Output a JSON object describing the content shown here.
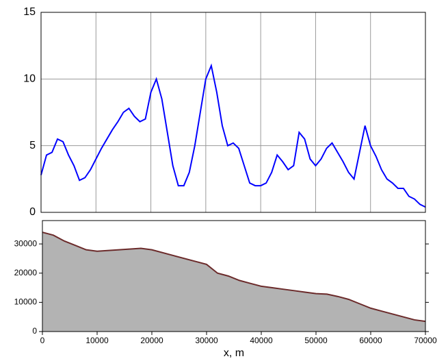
{
  "chart_data": [
    {
      "type": "line",
      "x": [
        0,
        1000,
        2000,
        3000,
        4000,
        5000,
        6000,
        7000,
        8000,
        9000,
        10000,
        11000,
        12000,
        13000,
        14000,
        15000,
        16000,
        17000,
        18000,
        19000,
        20000,
        21000,
        22000,
        23000,
        24000,
        25000,
        26000,
        27000,
        28000,
        29000,
        30000,
        31000,
        32000,
        33000,
        34000,
        35000,
        36000,
        37000,
        38000,
        39000,
        40000,
        41000,
        42000,
        43000,
        44000,
        45000,
        46000,
        47000,
        48000,
        49000,
        50000,
        51000,
        52000,
        53000,
        54000,
        55000,
        56000,
        57000,
        58000,
        59000,
        60000,
        61000,
        62000,
        63000,
        64000,
        65000,
        66000,
        67000,
        68000,
        69000,
        70000
      ],
      "series": [
        {
          "color": "#0000ff",
          "values": [
            2.8,
            4.3,
            4.5,
            5.5,
            5.3,
            4.3,
            3.5,
            2.4,
            2.6,
            3.2,
            4.0,
            4.8,
            5.5,
            6.2,
            6.8,
            7.5,
            7.8,
            7.2,
            6.8,
            7.0,
            9.0,
            10.0,
            8.5,
            6.0,
            3.5,
            2.0,
            2.0,
            3.0,
            5.0,
            7.5,
            10.0,
            11.0,
            9.0,
            6.5,
            5.0,
            5.2,
            4.8,
            3.5,
            2.2,
            2.0,
            2.0,
            2.2,
            3.0,
            4.3,
            3.8,
            3.2,
            3.5,
            6.0,
            5.5,
            4.0,
            3.5,
            4.0,
            4.8,
            5.2,
            4.5,
            3.8,
            3.0,
            2.5,
            4.5,
            6.5,
            5.0,
            4.2,
            3.2,
            2.5,
            2.2,
            1.8,
            1.8,
            1.2,
            1.0,
            0.6,
            0.4
          ]
        }
      ],
      "xlim": [
        0,
        70000
      ],
      "ylim": [
        0,
        15
      ],
      "yticks": [
        0,
        5,
        10,
        15
      ],
      "grid": true
    },
    {
      "type": "area",
      "x": [
        0,
        2000,
        4000,
        6000,
        8000,
        10000,
        14000,
        18000,
        20000,
        24000,
        28000,
        30000,
        32000,
        34000,
        36000,
        38000,
        40000,
        42000,
        44000,
        46000,
        48000,
        50000,
        52000,
        54000,
        56000,
        58000,
        60000,
        62000,
        64000,
        66000,
        68000,
        70000
      ],
      "values": [
        34000,
        33000,
        31000,
        29500,
        28000,
        27500,
        28000,
        28500,
        28000,
        26000,
        24000,
        23000,
        20000,
        19000,
        17500,
        16500,
        15500,
        15000,
        14500,
        14000,
        13500,
        13000,
        12800,
        12000,
        11000,
        9500,
        8000,
        7000,
        6000,
        5000,
        4000,
        3500
      ],
      "color": "#b3b3b3",
      "line_color": "#6b2a2a",
      "xlim": [
        0,
        70000
      ],
      "ylim": [
        0,
        38000
      ],
      "xticks": [
        0,
        10000,
        20000,
        30000,
        40000,
        50000,
        60000,
        70000
      ],
      "yticks": [
        0,
        10000,
        20000,
        30000
      ],
      "xlabel": "x, m"
    }
  ]
}
